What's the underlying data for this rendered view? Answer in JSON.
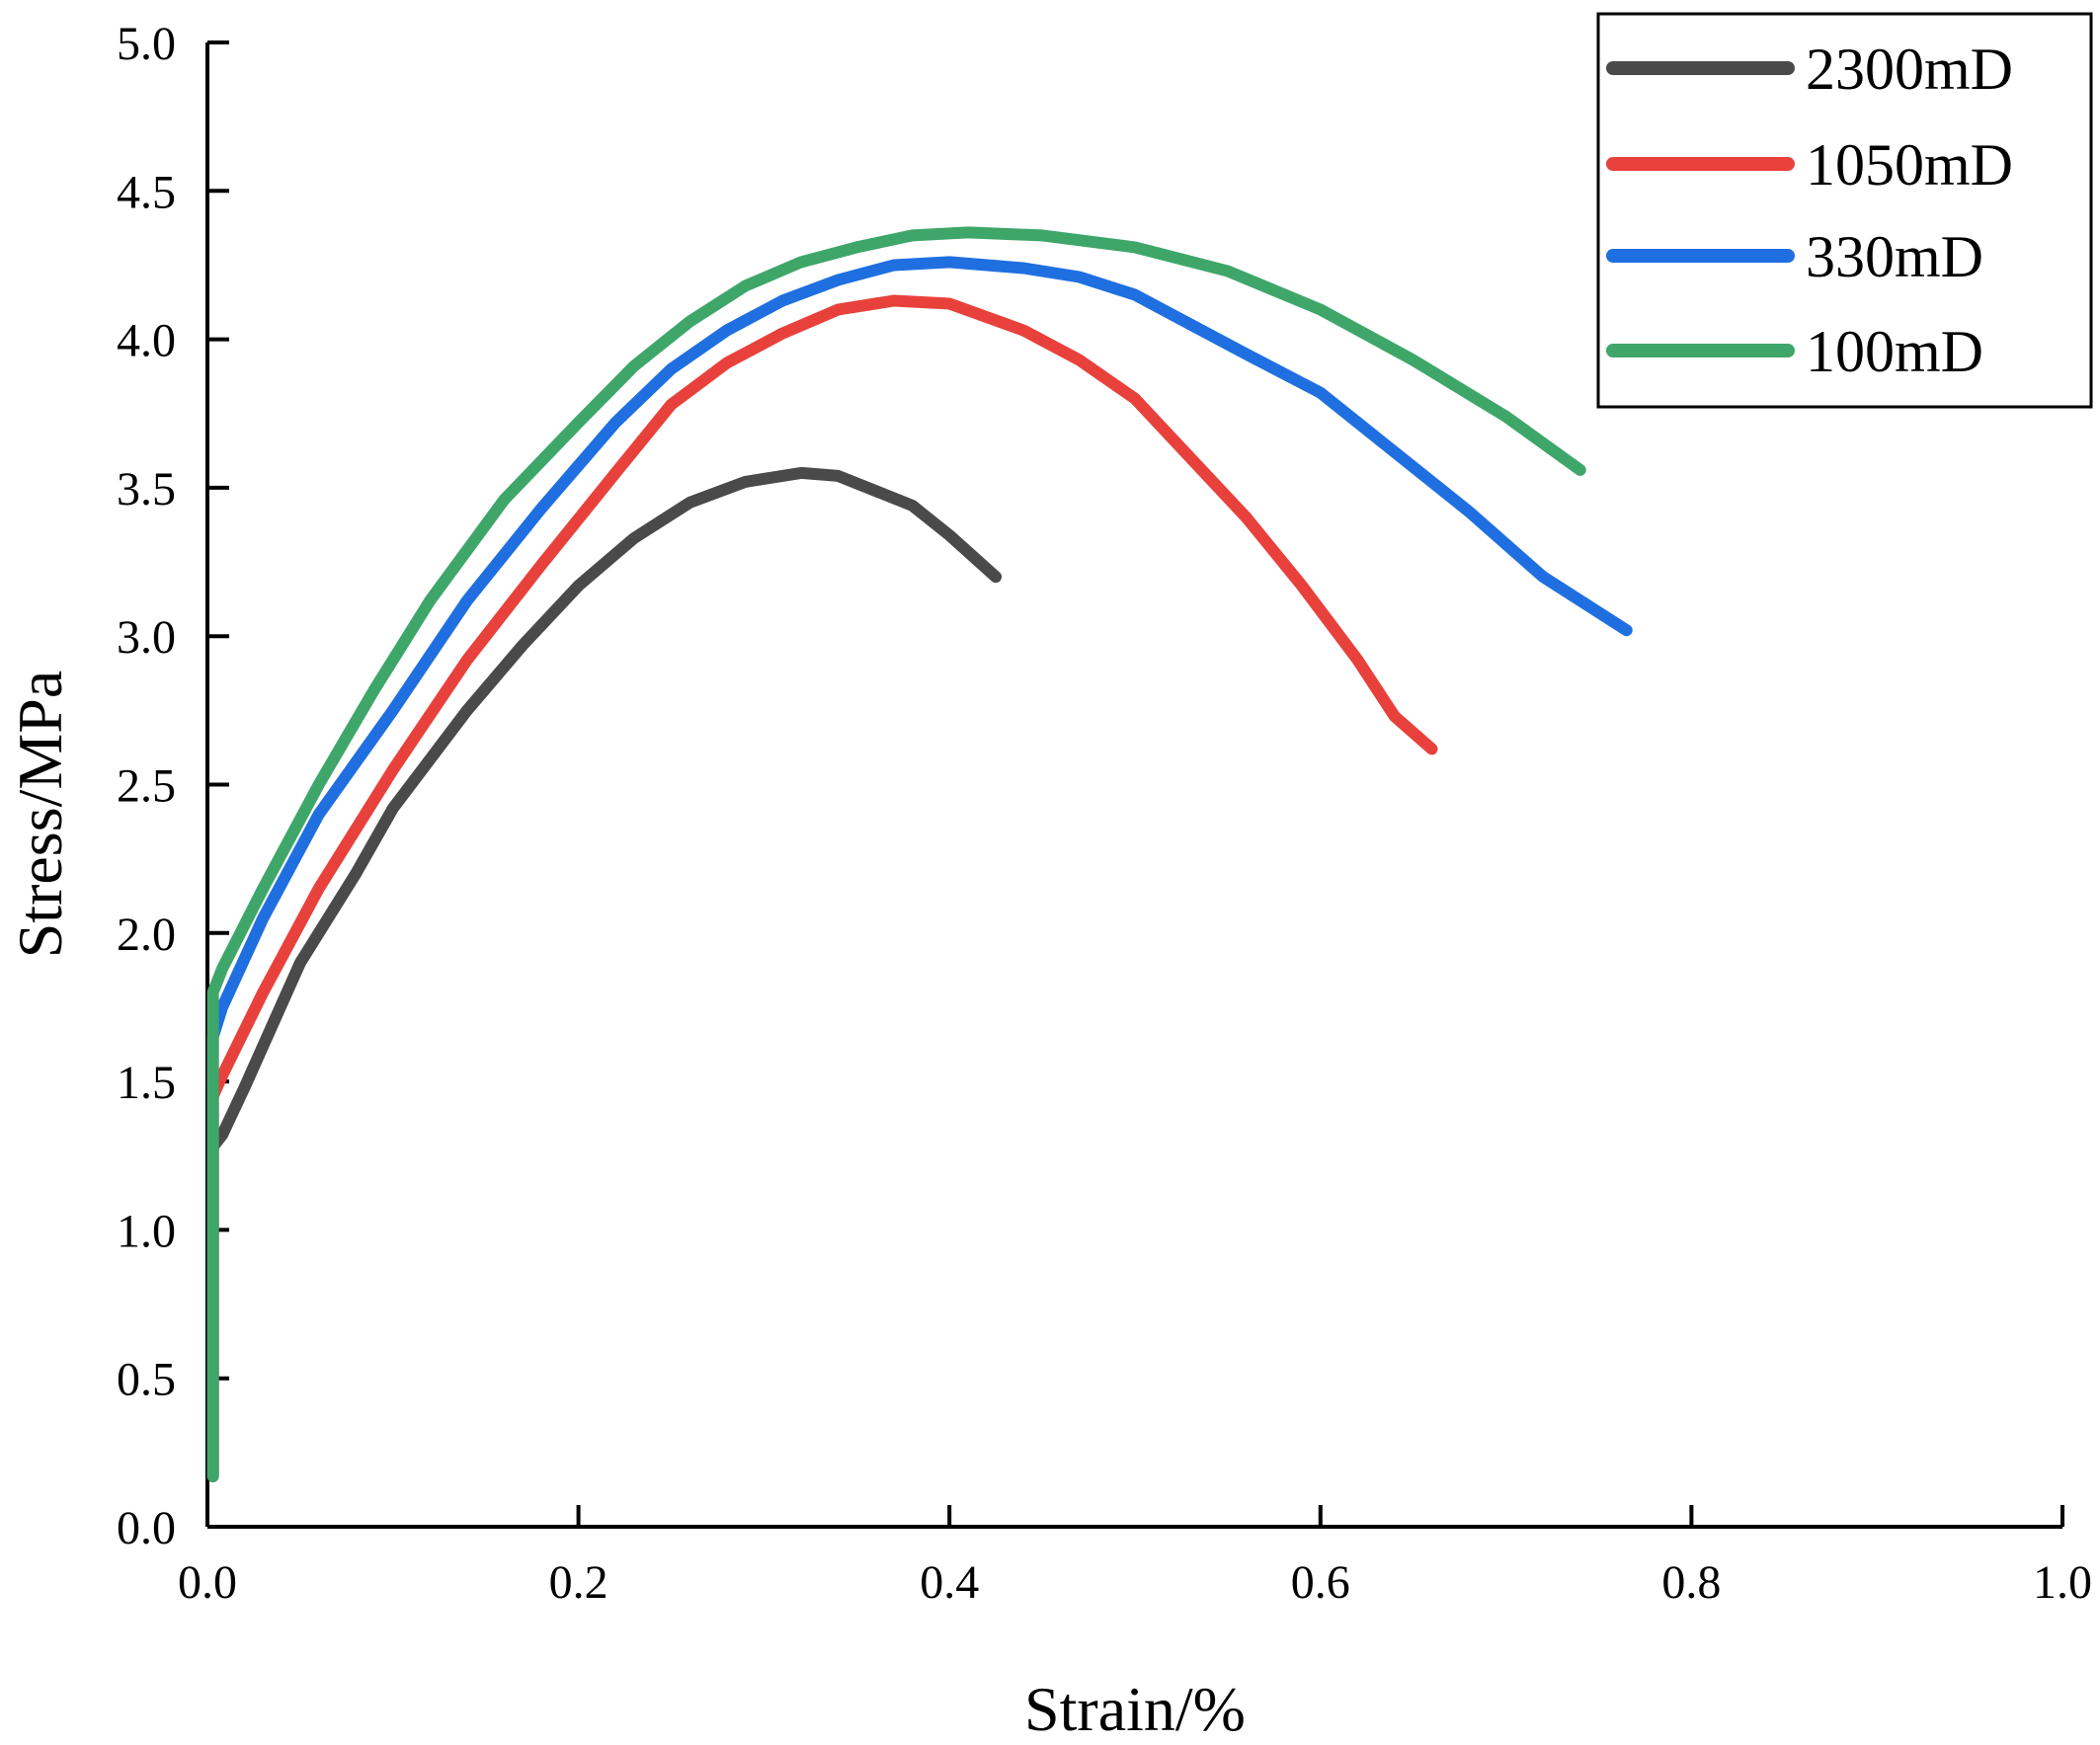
{
  "chart_data": {
    "type": "line",
    "title": "",
    "xlabel": "Strain/%",
    "ylabel": "Stress/MPa",
    "xlim": [
      0.0,
      1.0
    ],
    "ylim": [
      0.0,
      5.0
    ],
    "xticks": [
      "0.0",
      "0.2",
      "0.4",
      "0.6",
      "0.8",
      "1.0"
    ],
    "yticks": [
      "0.0",
      "0.5",
      "1.0",
      "1.5",
      "2.0",
      "2.5",
      "3.0",
      "3.5",
      "4.0",
      "4.5",
      "5.0"
    ],
    "grid": false,
    "legend_position": "top-right",
    "series": [
      {
        "name": "2300mD",
        "color": "#4a4a4a",
        "x": [
          0.003,
          0.003,
          0.008,
          0.02,
          0.05,
          0.08,
          0.1,
          0.14,
          0.17,
          0.2,
          0.23,
          0.26,
          0.29,
          0.32,
          0.34,
          0.38,
          0.4,
          0.425
        ],
        "y": [
          0.17,
          1.28,
          1.32,
          1.48,
          1.9,
          2.2,
          2.42,
          2.75,
          2.97,
          3.17,
          3.33,
          3.45,
          3.52,
          3.55,
          3.54,
          3.44,
          3.34,
          3.2
        ]
      },
      {
        "name": "1050mD",
        "color": "#e8413c",
        "x": [
          0.003,
          0.003,
          0.008,
          0.03,
          0.06,
          0.1,
          0.14,
          0.18,
          0.22,
          0.25,
          0.28,
          0.31,
          0.34,
          0.37,
          0.4,
          0.44,
          0.47,
          0.5,
          0.53,
          0.56,
          0.59,
          0.62,
          0.64,
          0.66
        ],
        "y": [
          0.17,
          1.45,
          1.52,
          1.8,
          2.15,
          2.55,
          2.92,
          3.24,
          3.55,
          3.78,
          3.92,
          4.02,
          4.1,
          4.13,
          4.12,
          4.03,
          3.93,
          3.8,
          3.6,
          3.4,
          3.17,
          2.92,
          2.73,
          2.62
        ]
      },
      {
        "name": "330mD",
        "color": "#1f6fe0",
        "x": [
          0.003,
          0.003,
          0.008,
          0.03,
          0.06,
          0.1,
          0.14,
          0.18,
          0.22,
          0.25,
          0.28,
          0.31,
          0.34,
          0.37,
          0.4,
          0.44,
          0.47,
          0.5,
          0.53,
          0.56,
          0.6,
          0.64,
          0.68,
          0.72,
          0.765
        ],
        "y": [
          0.17,
          1.65,
          1.75,
          2.05,
          2.4,
          2.75,
          3.12,
          3.43,
          3.72,
          3.9,
          4.03,
          4.13,
          4.2,
          4.25,
          4.26,
          4.24,
          4.21,
          4.15,
          4.05,
          3.95,
          3.82,
          3.62,
          3.42,
          3.2,
          3.02
        ]
      },
      {
        "name": "100mD",
        "color": "#3fa66a",
        "x": [
          0.003,
          0.003,
          0.008,
          0.03,
          0.06,
          0.09,
          0.12,
          0.16,
          0.2,
          0.23,
          0.26,
          0.29,
          0.32,
          0.35,
          0.38,
          0.41,
          0.45,
          0.5,
          0.55,
          0.6,
          0.65,
          0.7,
          0.74
        ],
        "y": [
          0.17,
          1.8,
          1.88,
          2.15,
          2.5,
          2.82,
          3.12,
          3.46,
          3.72,
          3.91,
          4.06,
          4.18,
          4.26,
          4.31,
          4.35,
          4.36,
          4.35,
          4.31,
          4.23,
          4.1,
          3.93,
          3.74,
          3.56
        ]
      }
    ]
  }
}
